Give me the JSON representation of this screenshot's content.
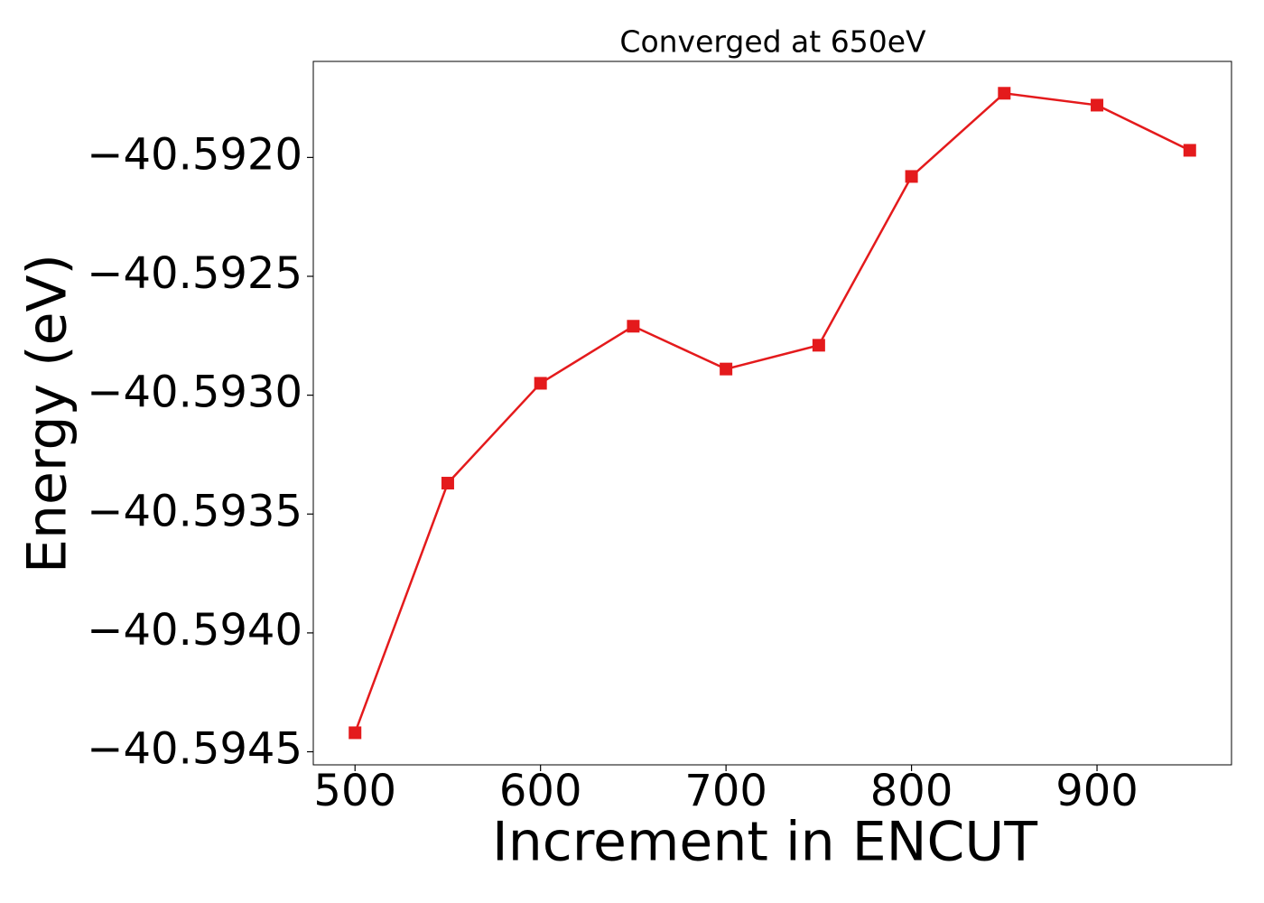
{
  "chart_data": {
    "type": "line",
    "title": "Converged at 650eV",
    "x_label": "Increment in ENCUT",
    "y_label": "Energy (eV)",
    "x": [
      500,
      550,
      600,
      650,
      700,
      750,
      800,
      850,
      900,
      950
    ],
    "series": [
      {
        "color": "#e41a1c",
        "marker": "square",
        "values": [
          -40.59442,
          -40.59337,
          -40.59295,
          -40.59271,
          -40.59289,
          -40.59279,
          -40.59208,
          -40.59173,
          -40.59178,
          -40.59197
        ]
      }
    ],
    "xlim": [
      477.5,
      972.5
    ],
    "xticks": [
      500,
      600,
      700,
      800,
      900
    ],
    "ylim": [
      -40.594555,
      -40.591596
    ],
    "yticks": [
      {
        "value": -40.5945,
        "label": "−40.5945"
      },
      {
        "value": -40.594,
        "label": "−40.5940"
      },
      {
        "value": -40.5935,
        "label": "−40.5935"
      },
      {
        "value": -40.593,
        "label": "−40.5930"
      },
      {
        "value": -40.5925,
        "label": "−40.5925"
      },
      {
        "value": -40.592,
        "label": "−40.5920"
      }
    ],
    "grid": false
  }
}
